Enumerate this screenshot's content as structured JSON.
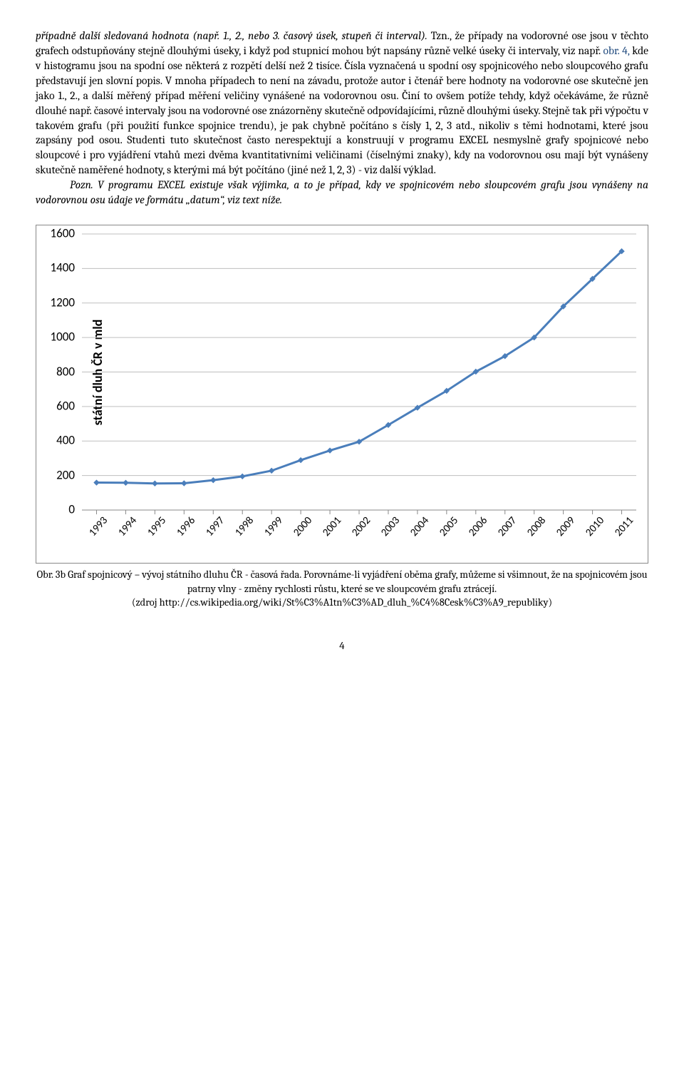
{
  "paragraph1_prefix_italic": "případně další sledovaná hodnota (např. 1., 2., nebo 3. časový úsek, stupeň či interval).",
  "paragraph1_rest": " Tzn., že případy na vodorovné ose jsou v těchto grafech odstupňovány stejně dlouhými úseky, i když pod stupnicí mohou být napsány různě velké úseky či intervaly, viz např. ",
  "paragraph1_blue": "obr. 4,",
  "paragraph1_after_blue": " kde v histogramu jsou na spodní ose některá z rozpětí delší než 2 tisíce. Čísla vyznačená u spodní osy spojnicového nebo sloupcového grafu představují jen slovní popis. V mnoha případech to není na závadu, protože autor i čtenář bere hodnoty na vodorovné ose skutečně jen jako 1., 2., a další měřený případ měření veličiny vynášené na vodorovnou osu. Činí to ovšem potíže tehdy, když očekáváme, že různě dlouhé např. časové intervaly jsou na vodorovné ose znázorněny skutečně odpovídajícími, různě dlouhými úseky. Stejně tak při výpočtu v takovém grafu (při použití funkce spojnice trendu), je pak chybně počítáno s čísly 1, 2, 3 atd., nikoliv s těmi hodnotami, které jsou zapsány pod osou.  Studenti tuto skutečnost často nerespektují a konstruují v programu EXCEL nesmyslně grafy spojnicové nebo sloupcové i pro vyjádření vtahů mezi dvěma kvantitativními veličinami (číselnými znaky), kdy na vodorovnou osu mají být vynášeny skutečně naměřené hodnoty, s kterými má být počítáno (jiné než 1, 2, 3) - viz další výklad.",
  "paragraph2": "Pozn. V programu EXCEL existuje však výjimka, a to je případ, kdy ve spojnicovém nebo sloupcovém grafu jsou vynášeny na vodorovnou osu údaje ve formátu „datum“, viz text níže.",
  "chart": {
    "type": "line",
    "y_label": "státní dluh ČR v mld",
    "y_ticks": [
      0,
      200,
      400,
      600,
      800,
      1000,
      1200,
      1400,
      1600
    ],
    "ylim": [
      0,
      1600
    ],
    "x_labels": [
      "1993",
      "1994",
      "1995",
      "1996",
      "1997",
      "1998",
      "1999",
      "2000",
      "2001",
      "2002",
      "2003",
      "2004",
      "2005",
      "2006",
      "2007",
      "2008",
      "2009",
      "2010",
      "2011"
    ],
    "values": [
      159,
      158,
      154,
      155,
      173,
      195,
      228,
      289,
      345,
      396,
      493,
      593,
      691,
      802,
      892,
      1000,
      1180,
      1340,
      1500
    ],
    "line_color": "#4a7ebb",
    "marker_color": "#4a7ebb",
    "line_width": 3,
    "marker_size": 7,
    "grid_color": "#bfbfbf",
    "axis_color": "#888888",
    "tick_fontsize": 17,
    "xlabel_fontsize": 15,
    "ylabel_fontsize": 18
  },
  "caption_line1": "Obr. 3b Graf spojnicový – vývoj státního dluhu ČR - časová řada. Porovnáme-li vyjádření oběma grafy, můžeme si všimnout, že na spojnicovém jsou patrny vlny - změny rychlosti růstu, které se ve sloupcovém grafu ztrácejí.",
  "caption_line2": "(zdroj http://cs.wikipedia.org/wiki/St%C3%A1tn%C3%AD_dluh_%C4%8Cesk%C3%A9_republiky)",
  "page_number": "4"
}
